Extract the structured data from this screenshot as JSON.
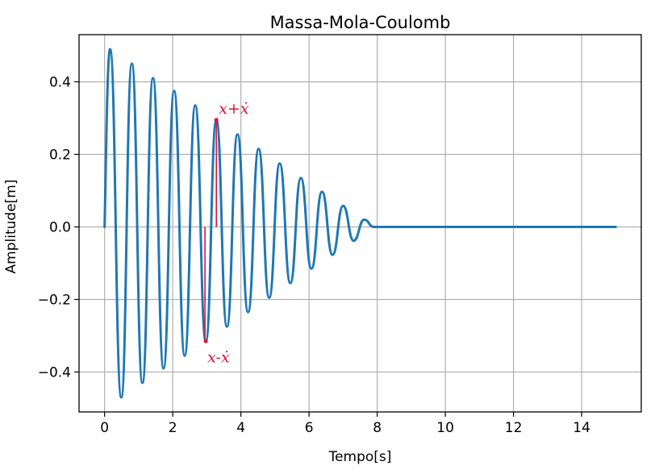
{
  "chart_data": {
    "type": "line",
    "title": "Massa-Mola-Coulomb",
    "xlabel": "Tempo[s]",
    "ylabel": "Amplitude[m]",
    "xlim": [
      -0.75,
      15.75
    ],
    "ylim": [
      -0.51,
      0.53
    ],
    "xticks": [
      0,
      2,
      4,
      6,
      8,
      10,
      12,
      14
    ],
    "xtick_labels": [
      "0",
      "2",
      "4",
      "6",
      "8",
      "10",
      "12",
      "14"
    ],
    "yticks": [
      0.4,
      0.2,
      0.0,
      -0.2,
      -0.4
    ],
    "ytick_labels": [
      "0.4",
      "0.2",
      "0.0",
      "−0.2",
      "−0.4"
    ],
    "grid": true,
    "series": [
      {
        "color": "#1f77b4",
        "x": [
          0.0,
          0.16,
          0.49,
          0.8,
          1.11,
          1.42,
          1.73,
          2.04,
          2.35,
          2.66,
          2.97,
          3.28,
          3.59,
          3.9,
          4.21,
          4.52,
          4.83,
          5.14,
          5.45,
          5.76,
          6.07,
          6.38,
          6.69,
          7.0,
          7.31,
          7.62,
          7.9,
          8.1,
          15.0
        ],
        "y": [
          0.0,
          0.49,
          -0.47,
          0.45,
          -0.43,
          0.41,
          -0.39,
          0.375,
          -0.355,
          0.335,
          -0.315,
          0.295,
          -0.275,
          0.255,
          -0.235,
          0.215,
          -0.195,
          0.175,
          -0.155,
          0.135,
          -0.115,
          0.097,
          -0.077,
          0.058,
          -0.038,
          0.02,
          0.0,
          0.0,
          0.0
        ]
      }
    ]
  },
  "annotations": [
    {
      "text": "x+ẋ",
      "color": "#dc143c",
      "x": 3.28,
      "y": 0.295
    },
    {
      "text": "x-ẋ",
      "color": "#dc143c",
      "x": 2.97,
      "y": -0.315
    }
  ]
}
